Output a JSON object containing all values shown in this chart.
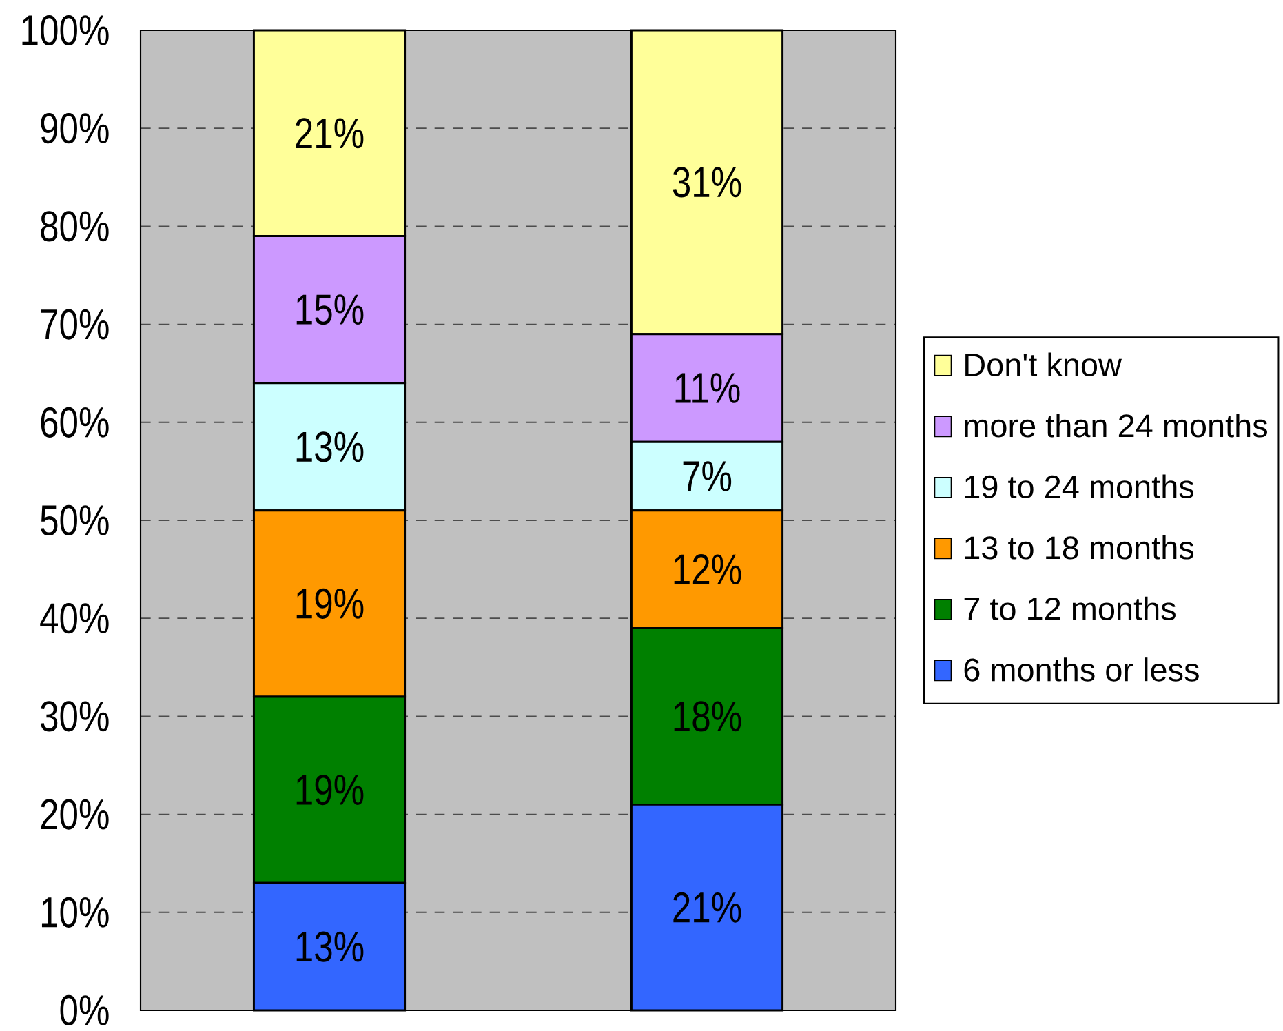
{
  "chart_data": {
    "type": "bar",
    "stacked": true,
    "categories": [
      null,
      null
    ],
    "series": [
      {
        "name": "6 months or less",
        "color": "#3366ff",
        "values": [
          13,
          21
        ],
        "value_labels": [
          "13%",
          "21%"
        ]
      },
      {
        "name": "7 to 12 months",
        "color": "#008000",
        "values": [
          19,
          18
        ],
        "value_labels": [
          "19%",
          "18%"
        ]
      },
      {
        "name": "13 to 18 months",
        "color": "#ff9900",
        "values": [
          19,
          12
        ],
        "value_labels": [
          "19%",
          "12%"
        ]
      },
      {
        "name": "19 to 24 months",
        "color": "#ccffff",
        "values": [
          13,
          7
        ],
        "value_labels": [
          "13%",
          "7%"
        ]
      },
      {
        "name": "more than 24 months",
        "color": "#cc99ff",
        "values": [
          15,
          11
        ],
        "value_labels": [
          "15%",
          "11%"
        ]
      },
      {
        "name": "Don't know",
        "color": "#ffff99",
        "values": [
          21,
          31
        ],
        "value_labels": [
          "21%",
          "31%"
        ]
      }
    ],
    "ylim": [
      0,
      100
    ],
    "yticks": [
      {
        "value": 0,
        "label": "0%"
      },
      {
        "value": 10,
        "label": "10%"
      },
      {
        "value": 20,
        "label": "20%"
      },
      {
        "value": 30,
        "label": "30%"
      },
      {
        "value": 40,
        "label": "40%"
      },
      {
        "value": 50,
        "label": "50%"
      },
      {
        "value": 60,
        "label": "60%"
      },
      {
        "value": 70,
        "label": "70%"
      },
      {
        "value": 80,
        "label": "80%"
      },
      {
        "value": 90,
        "label": "90%"
      },
      {
        "value": 100,
        "label": "100%"
      }
    ],
    "grid": "y",
    "legend": "right",
    "tick_labels": "y"
  }
}
